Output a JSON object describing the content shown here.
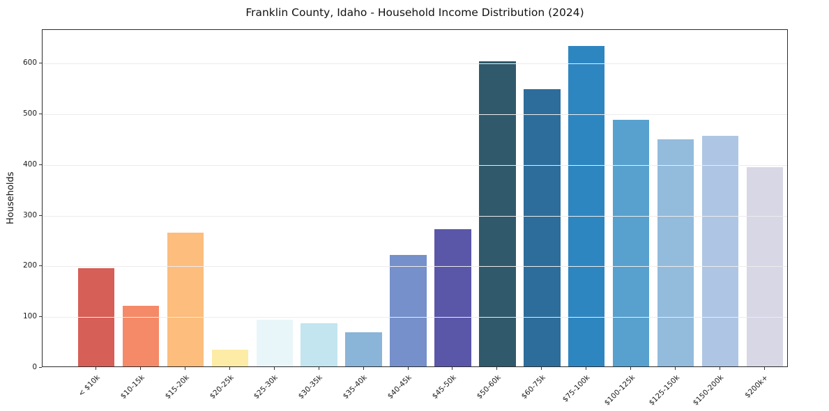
{
  "chart_data": {
    "type": "bar",
    "title": "Franklin County, Idaho - Household Income Distribution (2024)",
    "xlabel": "",
    "ylabel": "Households",
    "categories": [
      "< $10k",
      "$10-15k",
      "$15-20k",
      "$20-25k",
      "$25-30k",
      "$30-35k",
      "$35-40k",
      "$40-45k",
      "$45-50k",
      "$50-60k",
      "$60-75k",
      "$75-100k",
      "$100-125k",
      "$125-150k",
      "$150-200k",
      "$200k+"
    ],
    "values": [
      195,
      120,
      265,
      33,
      92,
      86,
      68,
      220,
      271,
      604,
      549,
      634,
      488,
      450,
      456,
      394
    ],
    "colors": [
      "#d65f57",
      "#f58a68",
      "#fcbd7d",
      "#fdeca6",
      "#e9f6f9",
      "#c2e5ef",
      "#8ab4d8",
      "#7590ca",
      "#5a57a9",
      "#30596b",
      "#2d6d9b",
      "#2e86c1",
      "#58a1ce",
      "#93bbdc",
      "#aec6e3",
      "#d8d7e6"
    ],
    "ylim": [
      0,
      666
    ],
    "yticks": [
      0,
      100,
      200,
      300,
      400,
      500,
      600
    ],
    "grid": "horizontal",
    "legend": "none"
  }
}
